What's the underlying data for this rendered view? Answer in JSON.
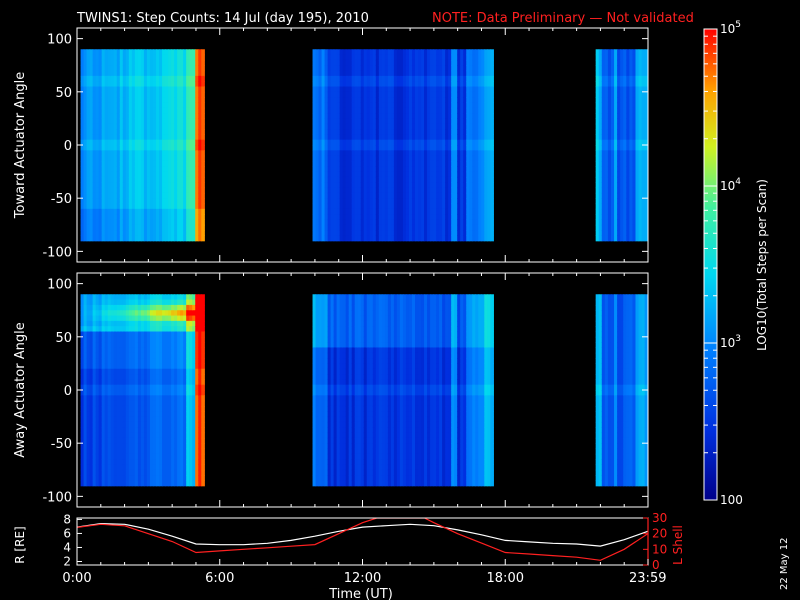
{
  "title": {
    "main": "TWINS1: Step Counts: 14 Jul (day 195), 2010",
    "note": "NOTE: Data Preliminary — Not validated"
  },
  "date_stamp": "22 May 12",
  "colors": {
    "background": "#000000",
    "axes": "#ffffff",
    "lshell_line": "#ff2020",
    "r_line": "#ffffff"
  },
  "chart_data": [
    {
      "type": "heatmap",
      "name": "toward",
      "ylabel": "Toward Actuator Angle",
      "ylim": [
        -110,
        110
      ],
      "yticks": [
        100,
        50,
        0,
        -50,
        -100
      ],
      "xlim": [
        0,
        24
      ],
      "data_extent_y": [
        -90,
        90
      ],
      "segments": [
        {
          "start": 0.15,
          "end": 5.35,
          "base_log": 3.05,
          "trend": "rises to 4.3 near 5.2h"
        },
        {
          "start": 9.9,
          "end": 17.5,
          "base_log": 2.45
        },
        {
          "start": 21.8,
          "end": 23.99,
          "base_log": 2.7
        }
      ]
    },
    {
      "type": "heatmap",
      "name": "away",
      "ylabel": "Away Actuator Angle",
      "ylim": [
        -110,
        110
      ],
      "yticks": [
        100,
        50,
        0,
        -50,
        -100
      ],
      "xlim": [
        0,
        24
      ],
      "data_extent_y": [
        -90,
        90
      ],
      "segments": [
        {
          "start": 0.15,
          "end": 5.35,
          "base_log": 2.5,
          "note": "intense band ~70° reaching 10^5 near 4-5h"
        },
        {
          "start": 9.9,
          "end": 17.5,
          "base_log": 2.45
        },
        {
          "start": 21.8,
          "end": 23.99,
          "base_log": 2.7
        }
      ]
    },
    {
      "type": "line",
      "name": "orbit",
      "xlim": [
        0,
        24
      ],
      "left_axis": {
        "label": "R [RE]",
        "ylim": [
          1.5,
          8.2
        ],
        "ticks": [
          2,
          4,
          6,
          8
        ]
      },
      "right_axis": {
        "label": "L Shell",
        "ylim": [
          0,
          30
        ],
        "ticks": [
          0,
          10,
          20,
          30
        ]
      },
      "series": [
        {
          "name": "R [RE]",
          "axis": "left",
          "color": "#ffffff",
          "x": [
            0,
            1,
            2,
            3,
            4,
            5,
            6,
            7,
            8,
            9,
            10,
            11,
            12,
            13,
            14,
            15,
            16,
            17,
            18,
            19,
            20,
            21,
            22,
            23,
            23.99
          ],
          "y": [
            6.9,
            7.4,
            7.3,
            6.6,
            5.6,
            4.5,
            4.4,
            4.4,
            4.6,
            5.0,
            5.6,
            6.3,
            6.9,
            7.1,
            7.3,
            7.1,
            6.5,
            5.8,
            5.0,
            4.8,
            4.6,
            4.5,
            4.2,
            5.1,
            6.3
          ]
        },
        {
          "name": "L Shell",
          "axis": "right",
          "color": "#ff2020",
          "x": [
            0,
            1,
            2,
            3,
            4,
            5,
            6,
            7,
            8,
            9,
            10,
            11,
            12,
            12.6,
            14.6,
            15,
            16,
            17,
            18,
            19,
            20,
            21,
            22,
            23,
            23.99
          ],
          "y": [
            24,
            26,
            25,
            20,
            15,
            8,
            9,
            10,
            11,
            12,
            13,
            20,
            27,
            30,
            30,
            27,
            20,
            14,
            8,
            7,
            6,
            5,
            3,
            10,
            20
          ]
        }
      ]
    }
  ],
  "xaxis": {
    "label": "Time (UT)",
    "ticks": [
      {
        "pos": 0,
        "label": "0:00"
      },
      {
        "pos": 6,
        "label": "6:00"
      },
      {
        "pos": 12,
        "label": "12:00"
      },
      {
        "pos": 18,
        "label": "18:00"
      },
      {
        "pos": 23.99,
        "label": "23:59"
      }
    ]
  },
  "colorbar": {
    "label": "LOG10(Total Steps per Scan)",
    "range_log": [
      2,
      5
    ],
    "major": [
      {
        "log": 5,
        "label": "10^5"
      },
      {
        "log": 4,
        "label": "10^4"
      },
      {
        "log": 3,
        "label": "10^3"
      },
      {
        "log": 2,
        "label": "100"
      }
    ]
  }
}
